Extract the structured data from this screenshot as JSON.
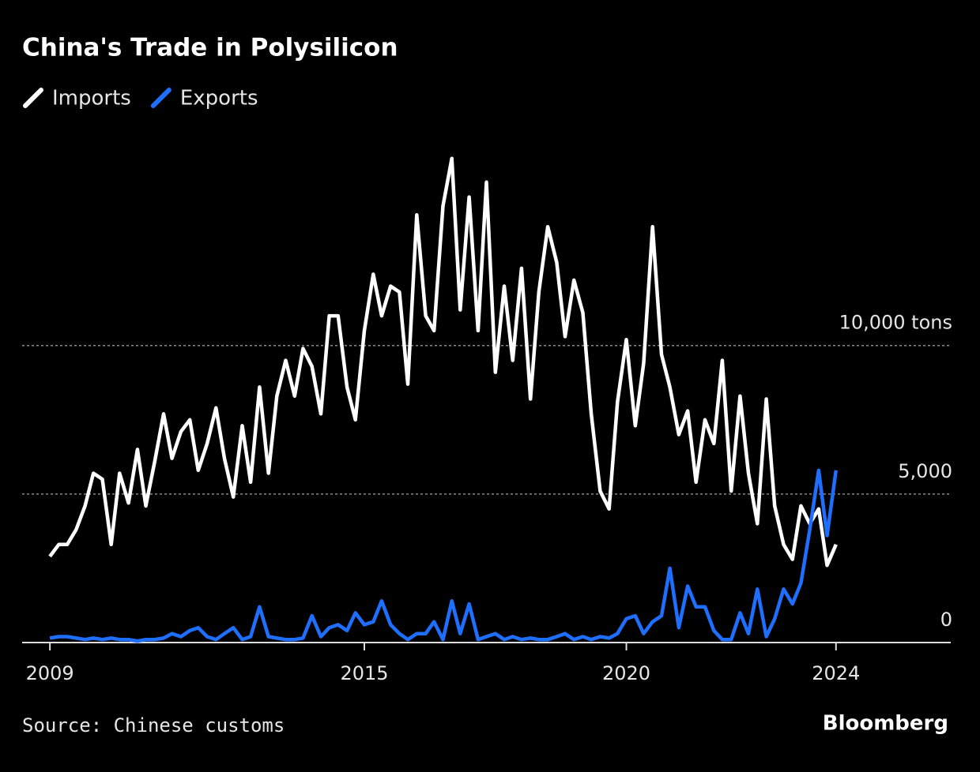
{
  "chart_data": {
    "type": "line",
    "title": "China's Trade in Polysilicon",
    "source": "Source: Chinese customs",
    "brand": "Bloomberg",
    "x": [
      2009,
      2009.17,
      2009.33,
      2009.5,
      2009.67,
      2009.83,
      2010,
      2010.17,
      2010.33,
      2010.5,
      2010.67,
      2010.83,
      2011,
      2011.17,
      2011.33,
      2011.5,
      2011.67,
      2011.83,
      2012,
      2012.17,
      2012.33,
      2012.5,
      2012.67,
      2012.83,
      2013,
      2013.17,
      2013.33,
      2013.5,
      2013.67,
      2013.83,
      2014,
      2014.17,
      2014.33,
      2014.5,
      2014.67,
      2014.83,
      2015,
      2015.17,
      2015.33,
      2015.5,
      2015.67,
      2015.83,
      2016,
      2016.17,
      2016.33,
      2016.5,
      2016.67,
      2016.83,
      2017,
      2017.17,
      2017.33,
      2017.5,
      2017.67,
      2017.83,
      2018,
      2018.17,
      2018.33,
      2018.5,
      2018.67,
      2018.83,
      2019,
      2019.17,
      2019.33,
      2019.5,
      2019.67,
      2019.83,
      2020,
      2020.17,
      2020.33,
      2020.5,
      2020.67,
      2020.83,
      2021,
      2021.17,
      2021.33,
      2021.5,
      2021.67,
      2021.83,
      2022,
      2022.17,
      2022.33,
      2022.5,
      2022.67,
      2022.83,
      2023,
      2023.17,
      2023.33,
      2023.5,
      2023.67,
      2023.83,
      2024
    ],
    "series": [
      {
        "name": "Imports",
        "color": "#ffffff",
        "values": [
          2900,
          3300,
          3300,
          3800,
          4600,
          5700,
          5500,
          3300,
          5700,
          4700,
          6500,
          4600,
          6100,
          7700,
          6200,
          7100,
          7500,
          5800,
          6700,
          7900,
          6200,
          4900,
          7300,
          5400,
          8600,
          5700,
          8300,
          9500,
          8300,
          9900,
          9300,
          7700,
          11000,
          11000,
          8600,
          7500,
          10500,
          12400,
          11000,
          12000,
          11800,
          8700,
          14400,
          11000,
          10500,
          14700,
          16300,
          11200,
          15000,
          10500,
          15500,
          9100,
          12000,
          9500,
          12600,
          8200,
          11800,
          14000,
          12800,
          10300,
          12200,
          11100,
          7700,
          5100,
          4500,
          8100,
          10200,
          7300,
          9400,
          14000,
          9700,
          8600,
          7000,
          7800,
          5400,
          7500,
          6700,
          9500,
          5100,
          8300,
          5700,
          4000,
          8200,
          4600,
          3300,
          2800,
          4600,
          4000,
          4500,
          2600,
          3300
        ]
      },
      {
        "name": "Exports",
        "color": "#1f6fff",
        "values": [
          150,
          200,
          200,
          150,
          100,
          150,
          100,
          150,
          100,
          100,
          50,
          100,
          100,
          150,
          300,
          200,
          400,
          500,
          200,
          100,
          300,
          500,
          100,
          200,
          1200,
          200,
          150,
          100,
          100,
          150,
          900,
          200,
          500,
          600,
          400,
          1000,
          600,
          700,
          1400,
          600,
          300,
          100,
          300,
          300,
          700,
          100,
          1400,
          300,
          1300,
          100,
          200,
          300,
          100,
          200,
          100,
          150,
          100,
          100,
          200,
          300,
          100,
          200,
          100,
          200,
          150,
          300,
          800,
          900,
          300,
          700,
          900,
          2500,
          500,
          1900,
          1200,
          1200,
          400,
          100,
          100,
          1000,
          300,
          1800,
          200,
          800,
          1800,
          1300,
          2000,
          3800,
          5800,
          3600,
          5800
        ]
      }
    ],
    "xlim": [
      2008.47,
      2026.19
    ],
    "xticks": [
      2009,
      2015,
      2020,
      2024
    ],
    "ylim": [
      0,
      17700
    ],
    "yticks": [
      0,
      {
        "value": 5000,
        "label": "5,000"
      },
      {
        "value": 10000,
        "label": "10,000 tons"
      }
    ],
    "grid": true
  }
}
